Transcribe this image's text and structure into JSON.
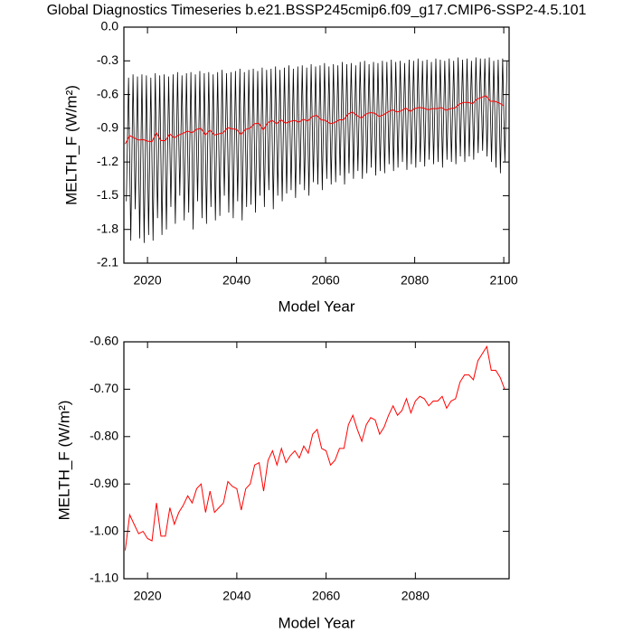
{
  "chart_data": [
    {
      "type": "line",
      "title": "Global Diagnostics Timeseries b.e21.BSSP245cmip6.f09_g17.CMIP6-SSP2-4.5.101",
      "xlabel": "Model Year",
      "ylabel": "MELTH_F (W/m²)",
      "xlim": [
        2014.7,
        2101.2
      ],
      "ylim": [
        -2.1,
        0
      ],
      "xticks": [
        2020,
        2040,
        2060,
        2080,
        2100
      ],
      "yticks": [
        {
          "value": 0,
          "label": "0.0"
        },
        -0.3,
        -0.6,
        -0.9,
        -1.2,
        -1.5,
        -1.8,
        -2.1
      ],
      "series": [
        {
          "color": "#000000",
          "x": [
            2015.25,
            2015.75,
            2016.25,
            2016.75,
            2017.25,
            2017.75,
            2018.25,
            2018.75,
            2019.25,
            2019.75,
            2020.25,
            2020.75,
            2021.25,
            2021.75,
            2022.25,
            2022.75,
            2023.25,
            2023.75,
            2024.25,
            2024.75,
            2025.25,
            2025.75,
            2026.25,
            2026.75,
            2027.25,
            2027.75,
            2028.25,
            2028.75,
            2029.25,
            2029.75,
            2030.25,
            2030.75,
            2031.25,
            2031.75,
            2032.25,
            2032.75,
            2033.25,
            2033.75,
            2034.25,
            2034.75,
            2035.25,
            2035.75,
            2036.25,
            2036.75,
            2037.25,
            2037.75,
            2038.25,
            2038.75,
            2039.25,
            2039.75,
            2040.25,
            2040.75,
            2041.25,
            2041.75,
            2042.25,
            2042.75,
            2043.25,
            2043.75,
            2044.25,
            2044.75,
            2045.25,
            2045.75,
            2046.25,
            2046.75,
            2047.25,
            2047.75,
            2048.25,
            2048.75,
            2049.25,
            2049.75,
            2050.25,
            2050.75,
            2051.25,
            2051.75,
            2052.25,
            2052.75,
            2053.25,
            2053.75,
            2054.25,
            2054.75,
            2055.25,
            2055.75,
            2056.25,
            2056.75,
            2057.25,
            2057.75,
            2058.25,
            2058.75,
            2059.25,
            2059.75,
            2060.25,
            2060.75,
            2061.25,
            2061.75,
            2062.25,
            2062.75,
            2063.25,
            2063.75,
            2064.25,
            2064.75,
            2065.25,
            2065.75,
            2066.25,
            2066.75,
            2067.25,
            2067.75,
            2068.25,
            2068.75,
            2069.25,
            2069.75,
            2070.25,
            2070.75,
            2071.25,
            2071.75,
            2072.25,
            2072.75,
            2073.25,
            2073.75,
            2074.25,
            2074.75,
            2075.25,
            2075.75,
            2076.25,
            2076.75,
            2077.25,
            2077.75,
            2078.25,
            2078.75,
            2079.25,
            2079.75,
            2080.25,
            2080.75,
            2081.25,
            2081.75,
            2082.25,
            2082.75,
            2083.25,
            2083.75,
            2084.25,
            2084.75,
            2085.25,
            2085.75,
            2086.25,
            2086.75,
            2087.25,
            2087.75,
            2088.25,
            2088.75,
            2089.25,
            2089.75,
            2090.25,
            2090.75,
            2091.25,
            2091.75,
            2092.25,
            2092.75,
            2093.25,
            2093.75,
            2094.25,
            2094.75,
            2095.25,
            2095.75,
            2096.25,
            2096.75,
            2097.25,
            2097.75,
            2098.25,
            2098.75,
            2099.25,
            2099.75,
            2100.25,
            2100.75
          ],
          "values": [
            -1.55,
            -0.45,
            -1.9,
            -0.42,
            -1.62,
            -0.44,
            -1.88,
            -0.42,
            -1.92,
            -0.43,
            -1.85,
            -0.45,
            -1.9,
            -0.41,
            -1.7,
            -0.43,
            -1.85,
            -0.42,
            -1.8,
            -0.44,
            -1.6,
            -0.42,
            -1.75,
            -0.4,
            -1.5,
            -0.43,
            -1.72,
            -0.41,
            -1.65,
            -0.4,
            -1.8,
            -0.42,
            -1.55,
            -0.39,
            -1.7,
            -0.41,
            -1.75,
            -0.4,
            -1.6,
            -0.42,
            -1.72,
            -0.4,
            -1.68,
            -0.38,
            -1.5,
            -0.41,
            -1.65,
            -0.4,
            -1.7,
            -0.39,
            -1.55,
            -0.37,
            -1.72,
            -0.4,
            -1.6,
            -0.38,
            -1.58,
            -0.37,
            -1.65,
            -0.39,
            -1.5,
            -0.36,
            -1.6,
            -0.38,
            -1.45,
            -0.37,
            -1.62,
            -0.35,
            -1.5,
            -0.38,
            -1.55,
            -0.36,
            -1.48,
            -0.34,
            -1.45,
            -0.37,
            -1.52,
            -0.35,
            -1.4,
            -0.34,
            -1.45,
            -0.36,
            -1.5,
            -0.33,
            -1.38,
            -0.35,
            -1.4,
            -0.34,
            -1.45,
            -0.32,
            -1.35,
            -0.35,
            -1.4,
            -0.33,
            -1.38,
            -0.34,
            -1.32,
            -0.31,
            -1.4,
            -0.33,
            -1.3,
            -0.32,
            -1.35,
            -0.34,
            -1.28,
            -0.31,
            -1.35,
            -0.3,
            -1.3,
            -0.33,
            -1.25,
            -0.31,
            -1.32,
            -0.32,
            -1.28,
            -0.3,
            -1.3,
            -0.31,
            -1.22,
            -0.29,
            -1.28,
            -0.31,
            -1.25,
            -0.3,
            -1.2,
            -0.32,
            -1.27,
            -0.29,
            -1.22,
            -0.3,
            -1.25,
            -0.28,
            -1.2,
            -0.3,
            -1.24,
            -0.29,
            -1.18,
            -0.31,
            -1.22,
            -0.28,
            -1.2,
            -0.29,
            -1.25,
            -0.3,
            -1.18,
            -0.28,
            -1.2,
            -0.3,
            -1.22,
            -0.27,
            -1.15,
            -0.29,
            -1.2,
            -0.28,
            -1.15,
            -0.3,
            -1.18,
            -0.27,
            -1.12,
            -0.28,
            -1.1,
            -0.28,
            -1.15,
            -0.27,
            -1.2,
            -0.3,
            -1.25,
            -0.29,
            -1.3,
            -0.28,
            -1.2,
            -0.3
          ]
        },
        {
          "color": "#ff0000",
          "x": [
            2015,
            2016,
            2017,
            2018,
            2019,
            2020,
            2021,
            2022,
            2023,
            2024,
            2025,
            2026,
            2027,
            2028,
            2029,
            2030,
            2031,
            2032,
            2033,
            2034,
            2035,
            2036,
            2037,
            2038,
            2039,
            2040,
            2041,
            2042,
            2043,
            2044,
            2045,
            2046,
            2047,
            2048,
            2049,
            2050,
            2051,
            2052,
            2053,
            2054,
            2055,
            2056,
            2057,
            2058,
            2059,
            2060,
            2061,
            2062,
            2063,
            2064,
            2065,
            2066,
            2067,
            2068,
            2069,
            2070,
            2071,
            2072,
            2073,
            2074,
            2075,
            2076,
            2077,
            2078,
            2079,
            2080,
            2081,
            2082,
            2083,
            2084,
            2085,
            2086,
            2087,
            2088,
            2089,
            2090,
            2091,
            2092,
            2093,
            2094,
            2095,
            2096,
            2097,
            2098,
            2099,
            2100
          ],
          "values": [
            -1.04,
            -0.965,
            -0.985,
            -1.005,
            -1.0,
            -1.015,
            -1.02,
            -0.94,
            -1.01,
            -1.01,
            -0.95,
            -0.985,
            -0.96,
            -0.945,
            -0.925,
            -0.94,
            -0.91,
            -0.9,
            -0.96,
            -0.915,
            -0.96,
            -0.95,
            -0.94,
            -0.895,
            -0.905,
            -0.91,
            -0.955,
            -0.91,
            -0.9,
            -0.86,
            -0.855,
            -0.915,
            -0.85,
            -0.83,
            -0.86,
            -0.825,
            -0.855,
            -0.84,
            -0.83,
            -0.845,
            -0.82,
            -0.835,
            -0.795,
            -0.785,
            -0.825,
            -0.83,
            -0.86,
            -0.85,
            -0.825,
            -0.825,
            -0.775,
            -0.755,
            -0.785,
            -0.81,
            -0.775,
            -0.76,
            -0.765,
            -0.795,
            -0.78,
            -0.755,
            -0.735,
            -0.755,
            -0.745,
            -0.72,
            -0.75,
            -0.725,
            -0.715,
            -0.72,
            -0.735,
            -0.725,
            -0.725,
            -0.715,
            -0.74,
            -0.725,
            -0.72,
            -0.685,
            -0.67,
            -0.67,
            -0.68,
            -0.64,
            -0.625,
            -0.61,
            -0.66,
            -0.66,
            -0.675,
            -0.7
          ]
        }
      ]
    },
    {
      "type": "line",
      "xlabel": "Model Year",
      "ylabel": "MELTH_F (W/m²)",
      "xlim": [
        2014.7,
        2101
      ],
      "ylim": [
        -1.1,
        -0.6
      ],
      "xticks": [
        2020,
        2040,
        2060,
        2080
      ],
      "yticks": [
        {
          "value": -0.6,
          "label": "-0.60"
        },
        {
          "value": -0.7,
          "label": "-0.70"
        },
        {
          "value": -0.8,
          "label": "-0.80"
        },
        {
          "value": -0.9,
          "label": "-0.90"
        },
        {
          "value": -1.0,
          "label": "-1.00"
        },
        {
          "value": -1.1,
          "label": "-1.10"
        }
      ],
      "series": [
        {
          "color": "#ff0000",
          "x": [
            2015,
            2016,
            2017,
            2018,
            2019,
            2020,
            2021,
            2022,
            2023,
            2024,
            2025,
            2026,
            2027,
            2028,
            2029,
            2030,
            2031,
            2032,
            2033,
            2034,
            2035,
            2036,
            2037,
            2038,
            2039,
            2040,
            2041,
            2042,
            2043,
            2044,
            2045,
            2046,
            2047,
            2048,
            2049,
            2050,
            2051,
            2052,
            2053,
            2054,
            2055,
            2056,
            2057,
            2058,
            2059,
            2060,
            2061,
            2062,
            2063,
            2064,
            2065,
            2066,
            2067,
            2068,
            2069,
            2070,
            2071,
            2072,
            2073,
            2074,
            2075,
            2076,
            2077,
            2078,
            2079,
            2080,
            2081,
            2082,
            2083,
            2084,
            2085,
            2086,
            2087,
            2088,
            2089,
            2090,
            2091,
            2092,
            2093,
            2094,
            2095,
            2096,
            2097,
            2098,
            2099,
            2100
          ],
          "values": [
            -1.04,
            -0.965,
            -0.985,
            -1.005,
            -1.0,
            -1.015,
            -1.02,
            -0.94,
            -1.01,
            -1.01,
            -0.95,
            -0.985,
            -0.96,
            -0.945,
            -0.925,
            -0.94,
            -0.91,
            -0.9,
            -0.96,
            -0.915,
            -0.96,
            -0.95,
            -0.94,
            -0.895,
            -0.905,
            -0.91,
            -0.955,
            -0.91,
            -0.9,
            -0.86,
            -0.855,
            -0.915,
            -0.85,
            -0.83,
            -0.86,
            -0.825,
            -0.855,
            -0.84,
            -0.83,
            -0.845,
            -0.82,
            -0.835,
            -0.795,
            -0.785,
            -0.825,
            -0.83,
            -0.86,
            -0.85,
            -0.825,
            -0.825,
            -0.775,
            -0.755,
            -0.785,
            -0.81,
            -0.775,
            -0.76,
            -0.765,
            -0.795,
            -0.78,
            -0.755,
            -0.735,
            -0.755,
            -0.745,
            -0.72,
            -0.75,
            -0.725,
            -0.715,
            -0.72,
            -0.735,
            -0.725,
            -0.725,
            -0.715,
            -0.74,
            -0.725,
            -0.72,
            -0.685,
            -0.67,
            -0.67,
            -0.68,
            -0.64,
            -0.625,
            -0.61,
            -0.66,
            -0.66,
            -0.675,
            -0.7
          ]
        }
      ]
    }
  ]
}
